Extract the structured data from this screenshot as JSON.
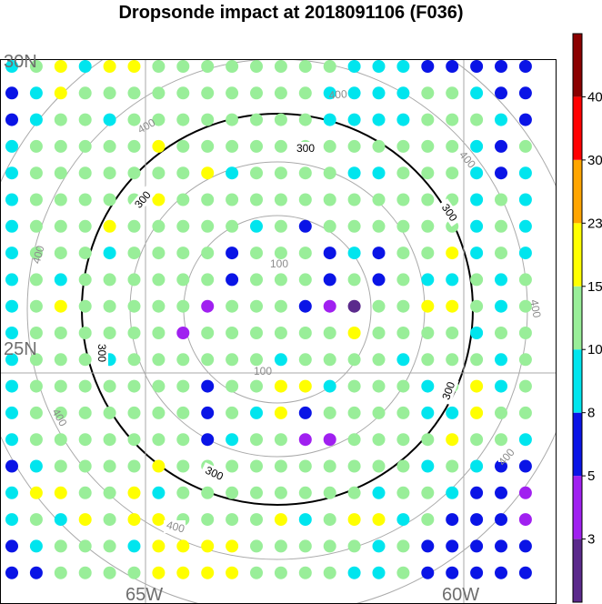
{
  "title": "Dropsonde impact at 2018091106 (F036)",
  "axes": {
    "lat_labels": [
      "30N",
      "25N"
    ],
    "lon_labels": [
      "65W",
      "60W"
    ]
  },
  "chart_data": {
    "type": "scatter",
    "colorbar": {
      "tick_labels": [
        "3",
        "5",
        "8",
        "10",
        "15",
        "23",
        "30",
        "40"
      ],
      "colors": [
        "#5b2a8c",
        "#a020f0",
        "#0a14e6",
        "#00e5ee",
        "#99ee99",
        "#ffff00",
        "#ffa500",
        "#ff0000",
        "#8b0000"
      ]
    },
    "range_rings": {
      "gray_labels": [
        "100",
        "100",
        "400",
        "400",
        "400",
        "400",
        "400",
        "400"
      ],
      "black_labels": [
        "300",
        "300",
        "300",
        "300",
        "300"
      ]
    },
    "grid": {
      "columns": 22,
      "rows": 20,
      "palette_key": {
        "p": 0,
        "v": 1,
        "b": 2,
        "c": 3,
        "g": 4,
        "y": 5
      },
      "rows_codes": [
        "cgycyyggggggggcccbbbbb",
        "bcyggggggggggccccggcbb",
        "bcggcggggggggccccgggcb",
        "cgggggyggggggggggggcbg",
        "cgggggggycggggccgggcbc",
        "cgggggyggggggggggggcgc",
        "cgggygggggcgbggggggcgc",
        "cgggcggggbgggbcbggycgc",
        "cgcggggggbgggbgbgccgcg",
        "cgygggggvgggbvpggyygcg",
        "cggggggvggggggyggggcgg",
        "cgggcggggggcggggcgggcg",
        "cgggggggbggyycgggcgycg",
        "cgggggggbgcybggggccygg",
        "cgggggggbcggvvggggyggc",
        "bcggggyggggggggggcgcbb",
        "cyyggycggggggggcggcbbv",
        "cgcygyyggggycgyycgbbbv",
        "bcgggcyyyygggggcgbbbbb",
        "bbggggyyyyggggccgbbbbb"
      ]
    }
  }
}
